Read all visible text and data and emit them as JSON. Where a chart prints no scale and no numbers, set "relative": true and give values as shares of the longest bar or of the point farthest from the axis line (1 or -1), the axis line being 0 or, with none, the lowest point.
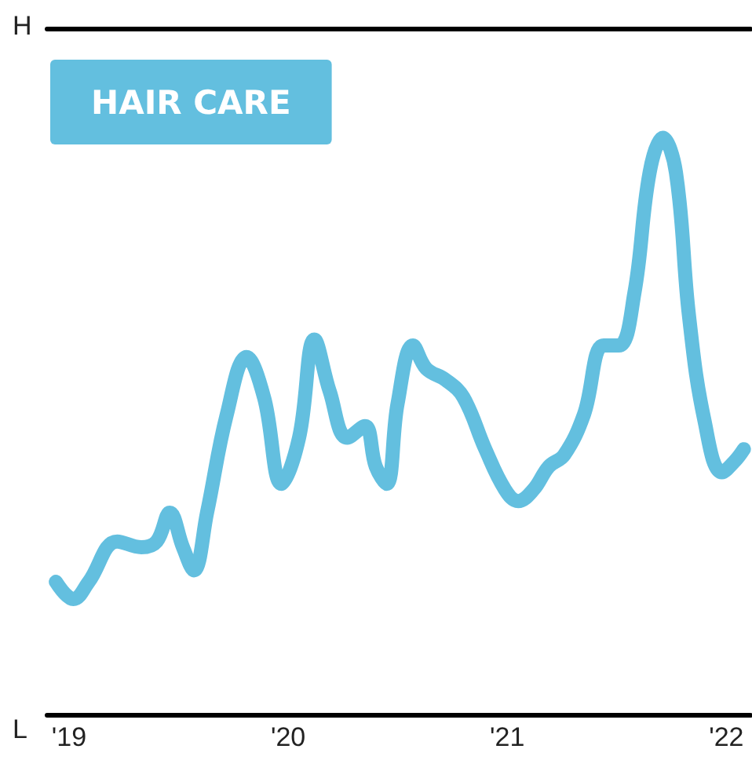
{
  "chart_data": {
    "type": "line",
    "title": "HAIR CARE",
    "color": "#63bfdf",
    "relative": true,
    "x": [
      2018.94,
      2019.02,
      2019.09,
      2019.22,
      2019.33,
      2019.4,
      2019.46,
      2019.52,
      2019.57,
      2019.63,
      2019.72,
      2019.81,
      2019.89,
      2019.97,
      2020.05,
      2020.12,
      2020.19,
      2020.27,
      2020.35,
      2020.4,
      2020.45,
      2020.5,
      2020.57,
      2020.63,
      2020.72,
      2020.8,
      2020.9,
      2020.99,
      2021.05,
      2021.12,
      2021.19,
      2021.26,
      2021.35,
      2021.44,
      2021.51,
      2021.58,
      2021.65,
      2021.71,
      2021.77,
      2021.83,
      2021.9,
      2021.98,
      2022.04,
      2022.08
    ],
    "values": [
      0.23,
      0.2,
      0.23,
      0.3,
      0.29,
      0.3,
      0.35,
      0.29,
      0.25,
      0.35,
      0.52,
      0.62,
      0.55,
      0.4,
      0.48,
      0.65,
      0.56,
      0.48,
      0.5,
      0.43,
      0.4,
      0.54,
      0.64,
      0.6,
      0.58,
      0.55,
      0.46,
      0.39,
      0.37,
      0.39,
      0.43,
      0.45,
      0.52,
      0.64,
      0.64,
      0.73,
      0.94,
      1,
      0.94,
      0.69,
      0.51,
      0.42,
      0.44,
      0.46
    ],
    "xlim": [
      2018.9,
      2022.11
    ],
    "xticks": [
      {
        "value": 2019,
        "label": "'19"
      },
      {
        "value": 2020,
        "label": "'20"
      },
      {
        "value": 2021,
        "label": "'21"
      },
      {
        "value": 2022,
        "label": "'22"
      }
    ],
    "annotations": [
      "H",
      "L"
    ]
  }
}
